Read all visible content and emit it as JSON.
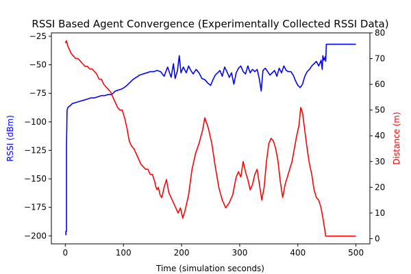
{
  "chart_data": {
    "type": "line",
    "title": "RSSI Based Agent Convergence (Experimentally Collected RSSI Data)",
    "xlabel": "Time (simulation seconds)",
    "ylabel_left": "RSSI (dBm)",
    "ylabel_right": "Distance (m)",
    "xlim": [
      -24,
      524
    ],
    "ylim_left": [
      -207,
      -22
    ],
    "ylim_right": [
      -2,
      80
    ],
    "x_ticks": [
      0,
      100,
      200,
      300,
      400,
      500
    ],
    "y_ticks_left": [
      -25,
      -50,
      -75,
      -100,
      -125,
      -150,
      -175,
      -200
    ],
    "y_ticks_right": [
      0,
      10,
      20,
      30,
      40,
      50,
      60,
      70,
      80
    ],
    "grid": false,
    "series": [
      {
        "name": "",
        "axis": "left",
        "color": "#0000ff",
        "x": [
          0,
          1,
          1,
          2,
          2,
          3,
          4,
          5,
          8,
          12,
          18,
          25,
          32,
          38,
          44,
          50,
          56,
          62,
          68,
          74,
          80,
          86,
          92,
          98,
          104,
          110,
          116,
          122,
          128,
          134,
          140,
          146,
          152,
          158,
          164,
          170,
          176,
          182,
          186,
          189,
          193,
          196,
          199,
          203,
          208,
          212,
          216,
          220,
          225,
          230,
          235,
          240,
          245,
          250,
          255,
          258,
          262,
          266,
          270,
          274,
          278,
          282,
          286,
          290,
          294,
          298,
          302,
          306,
          310,
          314,
          318,
          322,
          326,
          330,
          334,
          337,
          340,
          344,
          348,
          352,
          356,
          360,
          364,
          368,
          372,
          376,
          380,
          384,
          388,
          392,
          396,
          400,
          404,
          408,
          412,
          416,
          420,
          424,
          428,
          432,
          436,
          440,
          442,
          443,
          445,
          447,
          448,
          449,
          451,
          500
        ],
        "y": [
          -199,
          -199,
          -196,
          -196,
          -120,
          -90,
          -88,
          -87,
          -86,
          -84,
          -83,
          -82,
          -81,
          -80,
          -79,
          -79,
          -78,
          -77,
          -77,
          -76,
          -76,
          -73,
          -72,
          -71,
          -69,
          -66,
          -63,
          -61,
          -59,
          -58,
          -57,
          -56,
          -56,
          -55,
          -56,
          -60,
          -52,
          -61,
          -49,
          -62,
          -55,
          -42,
          -57,
          -52,
          -57,
          -51,
          -55,
          -58,
          -54,
          -57,
          -62,
          -63,
          -66,
          -68,
          -62,
          -59,
          -57,
          -55,
          -60,
          -52,
          -56,
          -61,
          -57,
          -67,
          -57,
          -53,
          -51,
          -56,
          -58,
          -51,
          -57,
          -54,
          -56,
          -54,
          -63,
          -73,
          -55,
          -53,
          -56,
          -59,
          -57,
          -55,
          -60,
          -53,
          -57,
          -51,
          -55,
          -56,
          -56,
          -59,
          -64,
          -68,
          -70,
          -67,
          -60,
          -56,
          -54,
          -51,
          -49,
          -47,
          -51,
          -46,
          -54,
          -42,
          -46,
          -43,
          -47,
          -32,
          -32,
          -32
        ]
      },
      {
        "name": "",
        "axis": "right",
        "color": "#ff0000",
        "x": [
          0,
          2,
          4,
          6,
          8,
          10,
          14,
          18,
          22,
          26,
          30,
          34,
          38,
          42,
          46,
          50,
          54,
          58,
          62,
          66,
          70,
          74,
          78,
          82,
          86,
          90,
          94,
          98,
          102,
          106,
          110,
          114,
          118,
          122,
          126,
          130,
          134,
          138,
          142,
          146,
          150,
          154,
          156,
          158,
          160,
          163,
          166,
          170,
          174,
          178,
          182,
          186,
          190,
          194,
          198,
          202,
          206,
          212,
          218,
          224,
          230,
          236,
          240,
          246,
          252,
          258,
          264,
          270,
          276,
          282,
          288,
          294,
          298,
          302,
          306,
          310,
          314,
          318,
          322,
          326,
          330,
          334,
          338,
          342,
          346,
          350,
          354,
          358,
          362,
          366,
          370,
          374,
          378,
          382,
          386,
          390,
          394,
          398,
          402,
          405,
          408,
          412,
          416,
          420,
          424,
          428,
          432,
          436,
          440,
          444,
          448,
          500
        ],
        "y": [
          76,
          77,
          75,
          74,
          73,
          72,
          71,
          70,
          70,
          69,
          68,
          67,
          67,
          66,
          66,
          65,
          64,
          62,
          62,
          60,
          59,
          58,
          57,
          55,
          53,
          51,
          50,
          50,
          47,
          43,
          38,
          36,
          35,
          33,
          31,
          29,
          28,
          27,
          27,
          25,
          25,
          22,
          20,
          19,
          20,
          17,
          16,
          20,
          23,
          18,
          16,
          14,
          12,
          10,
          12,
          8,
          11,
          17,
          27,
          33,
          37,
          42,
          47,
          43,
          37,
          28,
          20,
          15,
          12,
          14,
          17,
          24,
          26,
          24,
          30,
          26,
          23,
          19,
          21,
          25,
          27,
          21,
          15,
          20,
          30,
          37,
          39,
          38,
          35,
          30,
          22,
          16,
          21,
          24,
          27,
          30,
          35,
          40,
          44,
          51,
          49,
          42,
          35,
          29,
          25,
          19,
          16,
          15,
          12,
          7,
          1,
          1
        ]
      }
    ]
  }
}
